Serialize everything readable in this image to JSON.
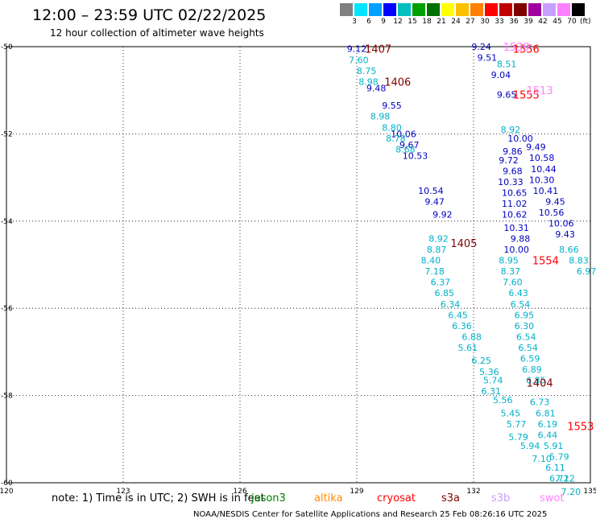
{
  "title": "12:00 – 23:59 UTC 02/22/2025",
  "subtitle": "12 hour collection of altimeter wave heights",
  "legend": {
    "values": [
      "3",
      "6",
      "9",
      "12",
      "15",
      "18",
      "21",
      "24",
      "27",
      "30",
      "33",
      "36",
      "39",
      "42",
      "45",
      "70"
    ],
    "unit": "(ft)",
    "colors": [
      "#808080",
      "#00e5ff",
      "#00a0ff",
      "#0000ff",
      "#00bfbf",
      "#00a000",
      "#007000",
      "#ffff00",
      "#ffc000",
      "#ff8000",
      "#ff0000",
      "#c00000",
      "#800000",
      "#a000a0",
      "#c8a0ff",
      "#ff80ff",
      "#000000"
    ]
  },
  "footer": {
    "note": "note:  1) Time is in UTC;  2) SWH is in feet",
    "credit": "NOAA/NESDIS Center for Satellite Applications and Research     25 Feb 08:26:16 UTC 2025",
    "satellites": [
      {
        "name": "jason3",
        "color": "#008000"
      },
      {
        "name": "altika",
        "color": "#ff8c00"
      },
      {
        "name": "cryosat",
        "color": "#ff0000"
      },
      {
        "name": "s3a",
        "color": "#800000"
      },
      {
        "name": "s3b",
        "color": "#c8a0ff"
      },
      {
        "name": "swot",
        "color": "#ff80ff"
      }
    ]
  },
  "chart_data": {
    "type": "scatter",
    "xlim": [
      120,
      135
    ],
    "ylim": [
      -60,
      -50
    ],
    "x_ticks": [
      120,
      123,
      126,
      129,
      132,
      135
    ],
    "y_ticks": [
      -50,
      -52,
      -54,
      -56,
      -58,
      -60
    ],
    "grid": true,
    "series": [
      {
        "color": "#0000c0",
        "points": [
          {
            "x": 129.0,
            "y": -50.05,
            "label": "9.12"
          },
          {
            "x": 129.5,
            "y": -50.95,
            "label": "9.48"
          },
          {
            "x": 129.9,
            "y": -51.35,
            "label": "9.55"
          },
          {
            "x": 130.2,
            "y": -52.0,
            "label": "10.06"
          },
          {
            "x": 130.35,
            "y": -52.25,
            "label": "9.67"
          },
          {
            "x": 130.5,
            "y": -52.5,
            "label": "10.53"
          },
          {
            "x": 130.9,
            "y": -53.3,
            "label": "10.54"
          },
          {
            "x": 131.0,
            "y": -53.55,
            "label": "9.47"
          },
          {
            "x": 131.2,
            "y": -53.85,
            "label": "9.92"
          },
          {
            "x": 132.2,
            "y": -50.0,
            "label": "9.24"
          },
          {
            "x": 132.35,
            "y": -50.25,
            "label": "9.51"
          },
          {
            "x": 132.7,
            "y": -50.65,
            "label": "9.04"
          },
          {
            "x": 132.85,
            "y": -51.1,
            "label": "9.65"
          },
          {
            "x": 133.2,
            "y": -52.1,
            "label": "10.00"
          },
          {
            "x": 133.0,
            "y": -52.4,
            "label": "9.86"
          },
          {
            "x": 132.9,
            "y": -52.6,
            "label": "9.72"
          },
          {
            "x": 133.0,
            "y": -52.85,
            "label": "9.68"
          },
          {
            "x": 132.95,
            "y": -53.1,
            "label": "10.33"
          },
          {
            "x": 133.05,
            "y": -53.35,
            "label": "10.65"
          },
          {
            "x": 133.05,
            "y": -53.6,
            "label": "11.02"
          },
          {
            "x": 133.05,
            "y": -53.85,
            "label": "10.62"
          },
          {
            "x": 133.1,
            "y": -54.15,
            "label": "10.31"
          },
          {
            "x": 133.2,
            "y": -54.4,
            "label": "9.88"
          },
          {
            "x": 133.1,
            "y": -54.65,
            "label": "10.00"
          },
          {
            "x": 133.6,
            "y": -52.3,
            "label": "9.49"
          },
          {
            "x": 133.75,
            "y": -52.55,
            "label": "10.58"
          },
          {
            "x": 133.8,
            "y": -52.8,
            "label": "10.44"
          },
          {
            "x": 133.75,
            "y": -53.05,
            "label": "10.30"
          },
          {
            "x": 133.85,
            "y": -53.3,
            "label": "10.41"
          },
          {
            "x": 134.1,
            "y": -53.55,
            "label": "9.45"
          },
          {
            "x": 134.0,
            "y": -53.8,
            "label": "10.56"
          },
          {
            "x": 134.25,
            "y": -54.05,
            "label": "10.06"
          },
          {
            "x": 134.35,
            "y": -54.3,
            "label": "9.43"
          }
        ]
      },
      {
        "color": "#00b0c8",
        "points": [
          {
            "x": 129.05,
            "y": -50.3,
            "label": "7.60"
          },
          {
            "x": 129.25,
            "y": -50.55,
            "label": "8.75"
          },
          {
            "x": 129.3,
            "y": -50.8,
            "label": "8.98"
          },
          {
            "x": 129.6,
            "y": -51.6,
            "label": "8.98"
          },
          {
            "x": 129.9,
            "y": -51.85,
            "label": "8.80"
          },
          {
            "x": 130.0,
            "y": -52.1,
            "label": "8.78"
          },
          {
            "x": 130.25,
            "y": -52.35,
            "label": "8.68"
          },
          {
            "x": 131.1,
            "y": -54.4,
            "label": "8.92"
          },
          {
            "x": 131.05,
            "y": -54.65,
            "label": "8.87"
          },
          {
            "x": 130.9,
            "y": -54.9,
            "label": "8.40"
          },
          {
            "x": 131.0,
            "y": -55.15,
            "label": "7.18"
          },
          {
            "x": 131.15,
            "y": -55.4,
            "label": "6.37"
          },
          {
            "x": 131.25,
            "y": -55.65,
            "label": "6.85"
          },
          {
            "x": 131.4,
            "y": -55.9,
            "label": "6.34"
          },
          {
            "x": 131.6,
            "y": -56.15,
            "label": "6.45"
          },
          {
            "x": 131.7,
            "y": -56.4,
            "label": "6.36"
          },
          {
            "x": 131.95,
            "y": -56.65,
            "label": "6.88"
          },
          {
            "x": 131.85,
            "y": -56.9,
            "label": "5.61"
          },
          {
            "x": 132.2,
            "y": -57.2,
            "label": "6.25"
          },
          {
            "x": 132.4,
            "y": -57.45,
            "label": "5.36"
          },
          {
            "x": 132.5,
            "y": -57.65,
            "label": "5.74"
          },
          {
            "x": 132.45,
            "y": -57.9,
            "label": "6.31"
          },
          {
            "x": 132.75,
            "y": -58.1,
            "label": "5.56"
          },
          {
            "x": 132.95,
            "y": -58.4,
            "label": "5.45"
          },
          {
            "x": 133.1,
            "y": -58.65,
            "label": "5.77"
          },
          {
            "x": 133.15,
            "y": -58.95,
            "label": "5.79"
          },
          {
            "x": 133.45,
            "y": -59.15,
            "label": "5.94"
          },
          {
            "x": 133.75,
            "y": -59.45,
            "label": "7.10"
          },
          {
            "x": 132.85,
            "y": -50.4,
            "label": "8.51"
          },
          {
            "x": 132.95,
            "y": -51.9,
            "label": "8.92"
          },
          {
            "x": 132.9,
            "y": -54.9,
            "label": "8.95"
          },
          {
            "x": 132.95,
            "y": -55.15,
            "label": "8.37"
          },
          {
            "x": 133.0,
            "y": -55.4,
            "label": "7.60"
          },
          {
            "x": 133.15,
            "y": -55.65,
            "label": "6.43"
          },
          {
            "x": 133.2,
            "y": -55.9,
            "label": "6.54"
          },
          {
            "x": 133.3,
            "y": -56.15,
            "label": "6.95"
          },
          {
            "x": 133.3,
            "y": -56.4,
            "label": "6.30"
          },
          {
            "x": 133.35,
            "y": -56.65,
            "label": "6.54"
          },
          {
            "x": 133.4,
            "y": -56.9,
            "label": "6.54"
          },
          {
            "x": 133.45,
            "y": -57.15,
            "label": "6.59"
          },
          {
            "x": 133.5,
            "y": -57.4,
            "label": "6.89"
          },
          {
            "x": 133.6,
            "y": -57.65,
            "label": "6.85"
          },
          {
            "x": 133.7,
            "y": -58.15,
            "label": "6.73"
          },
          {
            "x": 133.85,
            "y": -58.4,
            "label": "6.81"
          },
          {
            "x": 133.9,
            "y": -58.65,
            "label": "6.19"
          },
          {
            "x": 133.9,
            "y": -58.9,
            "label": "6.44"
          },
          {
            "x": 134.05,
            "y": -59.15,
            "label": "5.91"
          },
          {
            "x": 134.2,
            "y": -59.4,
            "label": "5.79"
          },
          {
            "x": 134.1,
            "y": -59.65,
            "label": "6.11"
          },
          {
            "x": 134.2,
            "y": -59.9,
            "label": "6.72"
          },
          {
            "x": 134.35,
            "y": -59.9,
            "label": "7.12"
          },
          {
            "x": 134.5,
            "y": -60.2,
            "label": "7.20"
          },
          {
            "x": 134.45,
            "y": -54.65,
            "label": "8.66"
          },
          {
            "x": 134.7,
            "y": -54.9,
            "label": "8.83"
          },
          {
            "x": 134.9,
            "y": -55.15,
            "label": "6.97"
          }
        ]
      }
    ],
    "annotations": [
      {
        "x": 129.55,
        "y": -50.05,
        "label": "1407",
        "color": "#800000"
      },
      {
        "x": 130.05,
        "y": -50.8,
        "label": "1406",
        "color": "#800000"
      },
      {
        "x": 131.75,
        "y": -54.5,
        "label": "1405",
        "color": "#800000"
      },
      {
        "x": 133.7,
        "y": -57.7,
        "label": "1404",
        "color": "#800000"
      },
      {
        "x": 133.35,
        "y": -50.05,
        "label": "1556",
        "color": "#ff0000"
      },
      {
        "x": 133.35,
        "y": -51.1,
        "label": "1555",
        "color": "#ff0000"
      },
      {
        "x": 133.85,
        "y": -54.9,
        "label": "1554",
        "color": "#ff0000"
      },
      {
        "x": 134.75,
        "y": -58.7,
        "label": "1553",
        "color": "#ff0000"
      },
      {
        "x": 133.1,
        "y": -50.0,
        "label": "1539",
        "color": "#ff80ff"
      },
      {
        "x": 133.7,
        "y": -51.0,
        "label": "1513",
        "color": "#ff80ff"
      }
    ]
  }
}
